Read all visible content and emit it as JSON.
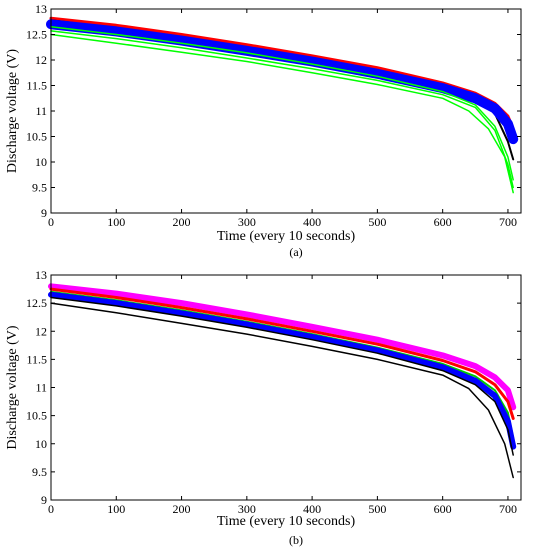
{
  "chart_data": [
    {
      "type": "line",
      "xlabel": "Time (every 10 seconds)",
      "ylabel": "Discharge voltage (V)",
      "caption": "(a)",
      "xlim": [
        0,
        720
      ],
      "ylim": [
        9,
        13
      ],
      "xticks": [
        "0",
        "100",
        "200",
        "300",
        "400",
        "500",
        "600",
        "700"
      ],
      "yticks": [
        "9",
        "9.5",
        "10",
        "10.5",
        "11",
        "11.5",
        "12",
        "12.5",
        "13"
      ],
      "grid": false,
      "series": [
        {
          "color": "#ff0000",
          "width": 3,
          "x": [
            0,
            100,
            200,
            300,
            400,
            500,
            600,
            650,
            680,
            700,
            705
          ],
          "y": [
            12.82,
            12.68,
            12.5,
            12.3,
            12.08,
            11.85,
            11.55,
            11.35,
            11.15,
            10.9,
            10.75
          ]
        },
        {
          "color": "#000000",
          "width": 2,
          "x": [
            0,
            100,
            200,
            300,
            400,
            500,
            600,
            650,
            680,
            700,
            708
          ],
          "y": [
            12.78,
            12.62,
            12.44,
            12.24,
            12.02,
            11.78,
            11.48,
            11.25,
            10.95,
            10.4,
            10.05
          ]
        },
        {
          "color": "#0000ff",
          "width": 10,
          "x": [
            0,
            100,
            200,
            300,
            400,
            500,
            600,
            650,
            680,
            700,
            708
          ],
          "y": [
            12.7,
            12.56,
            12.38,
            12.18,
            11.97,
            11.73,
            11.45,
            11.25,
            11.05,
            10.75,
            10.45
          ]
        },
        {
          "color": "#00ff00",
          "width": 1.5,
          "x": [
            0,
            100,
            200,
            300,
            400,
            500,
            600,
            650,
            680,
            700,
            708
          ],
          "y": [
            12.65,
            12.5,
            12.33,
            12.14,
            11.92,
            11.68,
            11.38,
            11.12,
            10.7,
            10.1,
            9.65
          ]
        },
        {
          "color": "#00ff00",
          "width": 1.5,
          "x": [
            0,
            100,
            200,
            300,
            400,
            500,
            600,
            650,
            680,
            700,
            708
          ],
          "y": [
            12.57,
            12.42,
            12.24,
            12.04,
            11.83,
            11.6,
            11.32,
            11.07,
            10.62,
            9.95,
            9.5
          ]
        },
        {
          "color": "#00ff00",
          "width": 1.5,
          "x": [
            0,
            100,
            200,
            300,
            400,
            500,
            600,
            640,
            670,
            695,
            708
          ],
          "y": [
            12.5,
            12.33,
            12.15,
            11.97,
            11.75,
            11.52,
            11.25,
            11.0,
            10.65,
            10.1,
            9.4
          ]
        }
      ]
    },
    {
      "type": "line",
      "xlabel": "Time (every 10 seconds)",
      "ylabel": "Discharge voltage (V)",
      "caption": "(b)",
      "xlim": [
        0,
        720
      ],
      "ylim": [
        9,
        13
      ],
      "xticks": [
        "0",
        "100",
        "200",
        "300",
        "400",
        "500",
        "600",
        "700"
      ],
      "yticks": [
        "9",
        "9.5",
        "10",
        "10.5",
        "11",
        "11.5",
        "12",
        "12.5",
        "13"
      ],
      "grid": false,
      "series": [
        {
          "color": "#ff00ff",
          "width": 6,
          "x": [
            0,
            100,
            200,
            300,
            400,
            500,
            600,
            650,
            680,
            700,
            708
          ],
          "y": [
            12.8,
            12.67,
            12.5,
            12.3,
            12.08,
            11.85,
            11.57,
            11.38,
            11.18,
            10.95,
            10.65
          ]
        },
        {
          "color": "#ff0000",
          "width": 3,
          "x": [
            0,
            100,
            200,
            300,
            400,
            500,
            600,
            650,
            680,
            700,
            708
          ],
          "y": [
            12.75,
            12.6,
            12.42,
            12.22,
            12.0,
            11.77,
            11.48,
            11.28,
            11.05,
            10.75,
            10.45
          ]
        },
        {
          "color": "#00cc00",
          "width": 2,
          "x": [
            0,
            100,
            200,
            300,
            400,
            500,
            600,
            650,
            680,
            700,
            708
          ],
          "y": [
            12.7,
            12.55,
            12.37,
            12.17,
            11.95,
            11.71,
            11.42,
            11.2,
            10.95,
            10.55,
            10.1
          ]
        },
        {
          "color": "#0000ff",
          "width": 6,
          "x": [
            0,
            100,
            200,
            300,
            400,
            500,
            600,
            650,
            680,
            700,
            708
          ],
          "y": [
            12.65,
            12.5,
            12.32,
            12.12,
            11.9,
            11.66,
            11.36,
            11.12,
            10.85,
            10.4,
            9.95
          ]
        },
        {
          "color": "#000000",
          "width": 1.5,
          "x": [
            0,
            100,
            200,
            300,
            400,
            500,
            600,
            650,
            680,
            700,
            708
          ],
          "y": [
            12.6,
            12.45,
            12.27,
            12.07,
            11.85,
            11.61,
            11.3,
            11.05,
            10.75,
            10.25,
            9.8
          ]
        },
        {
          "color": "#000000",
          "width": 1.5,
          "x": [
            0,
            100,
            200,
            300,
            400,
            500,
            600,
            640,
            670,
            695,
            708
          ],
          "y": [
            12.5,
            12.33,
            12.14,
            11.95,
            11.73,
            11.5,
            11.22,
            10.98,
            10.6,
            10.0,
            9.4
          ]
        }
      ]
    }
  ]
}
